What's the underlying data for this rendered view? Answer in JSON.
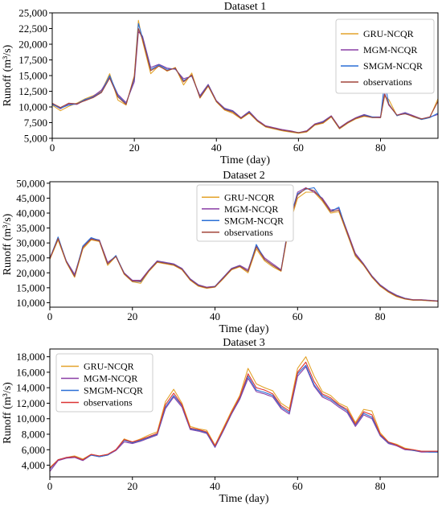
{
  "chart_data": [
    {
      "type": "line",
      "title": "Dataset 1",
      "xlabel": "Time (day)",
      "ylabel": "Runoff (m³/s)",
      "xlim": [
        0,
        94
      ],
      "ylim": [
        5000,
        25000
      ],
      "xticks": [
        0,
        20,
        40,
        60,
        80
      ],
      "xtick_labels": [
        "0",
        "20",
        "40",
        "60",
        "80"
      ],
      "yticks": [
        5000,
        7500,
        10000,
        12500,
        15000,
        17500,
        20000,
        22500,
        25000
      ],
      "ytick_labels": [
        "5,000",
        "7,500",
        "10,000",
        "12,500",
        "15,000",
        "17,500",
        "20,000",
        "22,500",
        "25,000"
      ],
      "legend_position": "top-right",
      "x_keyframes": [
        0,
        2,
        4,
        6,
        8,
        10,
        12,
        14,
        16,
        18,
        20,
        21,
        22,
        24,
        26,
        28,
        30,
        32,
        34,
        36,
        38,
        40,
        42,
        44,
        46,
        48,
        50,
        52,
        54,
        56,
        58,
        60,
        62,
        64,
        66,
        68,
        70,
        72,
        74,
        76,
        78,
        80,
        81,
        82,
        84,
        86,
        88,
        90,
        92,
        94
      ],
      "series": [
        {
          "name": "GRU-NCQR",
          "color": "#e3a32a",
          "values": [
            10300,
            9400,
            10100,
            10600,
            11300,
            11800,
            12500,
            15300,
            11100,
            10300,
            15000,
            23800,
            20500,
            15300,
            16600,
            15700,
            16300,
            13500,
            15400,
            11400,
            13300,
            10800,
            9500,
            9000,
            8100,
            9000,
            7700,
            6800,
            6500,
            6200,
            6000,
            5800,
            6000,
            7100,
            7400,
            8400,
            6500,
            7400,
            8100,
            8500,
            8300,
            8300,
            11700,
            11200,
            8600,
            9000,
            8400,
            8000,
            8300,
            11300
          ]
        },
        {
          "name": "MGM-NCQR",
          "color": "#8a3fa6",
          "values": [
            10500,
            9700,
            10500,
            10400,
            11100,
            11700,
            12700,
            14800,
            12000,
            10700,
            14000,
            22000,
            21300,
            16300,
            16800,
            16200,
            16000,
            14500,
            14900,
            11800,
            13600,
            11000,
            9800,
            9400,
            8300,
            9300,
            7900,
            7000,
            6700,
            6400,
            6200,
            5900,
            6200,
            7300,
            7700,
            8600,
            6700,
            7600,
            8300,
            8800,
            8400,
            8400,
            12200,
            10300,
            8700,
            9100,
            8600,
            8100,
            8400,
            8800
          ]
        },
        {
          "name": "SMGM-NCQR",
          "color": "#2a6fd6",
          "values": [
            10400,
            9800,
            10300,
            10500,
            11200,
            11600,
            12400,
            15000,
            11800,
            10500,
            14500,
            23300,
            21000,
            16000,
            16700,
            16000,
            16100,
            14200,
            15000,
            11600,
            13500,
            10900,
            9700,
            9300,
            8200,
            9200,
            7800,
            6900,
            6600,
            6300,
            6100,
            5900,
            6100,
            7200,
            7600,
            8500,
            6600,
            7500,
            8200,
            8700,
            8400,
            8300,
            14000,
            10500,
            8600,
            9000,
            8500,
            8000,
            8300,
            9000
          ]
        },
        {
          "name": "observations",
          "color": "#a2453a",
          "values": [
            10600,
            9900,
            10600,
            10500,
            11000,
            11500,
            12300,
            14600,
            11600,
            10400,
            14800,
            22500,
            20800,
            15800,
            16500,
            15800,
            16200,
            14000,
            15100,
            11500,
            13400,
            10900,
            9600,
            9200,
            8200,
            9100,
            7800,
            6900,
            6600,
            6300,
            6100,
            5900,
            6100,
            7200,
            7500,
            8500,
            6600,
            7500,
            8200,
            8600,
            8300,
            8300,
            12000,
            10400,
            8700,
            8900,
            8500,
            8100,
            8400,
            10900
          ]
        }
      ]
    },
    {
      "type": "line",
      "title": "Dataset 2",
      "xlabel": "Time (day)",
      "ylabel": "Runoff (m³/s)",
      "xlim": [
        0,
        94
      ],
      "ylim": [
        8500,
        50500
      ],
      "xticks": [
        0,
        20,
        40,
        60,
        80
      ],
      "xtick_labels": [
        "0",
        "20",
        "40",
        "60",
        "80"
      ],
      "yticks": [
        10000,
        15000,
        20000,
        25000,
        30000,
        35000,
        40000,
        45000,
        50000
      ],
      "ytick_labels": [
        "10,000",
        "15,000",
        "20,000",
        "25,000",
        "30,000",
        "35,000",
        "40,000",
        "45,000",
        "50,000"
      ],
      "legend_position": "top-center",
      "x_keyframes": [
        0,
        2,
        4,
        6,
        8,
        10,
        12,
        14,
        16,
        18,
        20,
        22,
        24,
        26,
        28,
        30,
        32,
        34,
        36,
        38,
        40,
        42,
        44,
        46,
        48,
        50,
        52,
        54,
        56,
        58,
        60,
        62,
        64,
        66,
        68,
        70,
        72,
        74,
        76,
        78,
        80,
        82,
        84,
        86,
        88,
        90,
        92,
        94
      ],
      "series": [
        {
          "name": "GRU-NCQR",
          "color": "#e3a32a",
          "values": [
            24500,
            31000,
            23500,
            18500,
            28000,
            31000,
            30500,
            22500,
            25500,
            19500,
            17000,
            16500,
            20500,
            23500,
            23000,
            22500,
            21000,
            17500,
            15500,
            14800,
            15200,
            18000,
            21000,
            22000,
            20000,
            28000,
            24000,
            22000,
            20500,
            36000,
            45000,
            47000,
            47000,
            44000,
            40000,
            40500,
            33000,
            25500,
            22500,
            18500,
            15500,
            13500,
            12000,
            11200,
            10800,
            10800,
            10600,
            10500
          ]
        },
        {
          "name": "MGM-NCQR",
          "color": "#8a3fa6",
          "values": [
            25000,
            31500,
            24000,
            19500,
            28500,
            31500,
            31000,
            23500,
            25500,
            20000,
            17500,
            17500,
            21000,
            24000,
            23500,
            23000,
            21500,
            18000,
            16000,
            15200,
            15500,
            18500,
            21500,
            22500,
            21000,
            29000,
            25000,
            23000,
            21000,
            37000,
            47000,
            48500,
            47000,
            45000,
            41000,
            41500,
            34000,
            26500,
            23000,
            19000,
            16000,
            14000,
            12500,
            11500,
            11000,
            11000,
            10800,
            10600
          ]
        },
        {
          "name": "SMGM-NCQR",
          "color": "#2a6fd6",
          "values": [
            24800,
            32000,
            23800,
            19000,
            29000,
            31800,
            30800,
            23000,
            25800,
            19800,
            17200,
            17000,
            20800,
            23800,
            23300,
            22800,
            21300,
            17800,
            15800,
            15000,
            15400,
            18300,
            21300,
            22300,
            20500,
            29500,
            24500,
            22500,
            20800,
            37500,
            46500,
            48000,
            48500,
            44500,
            40500,
            42000,
            33500,
            26000,
            22800,
            18800,
            15800,
            13800,
            12300,
            11400,
            10900,
            10900,
            10700,
            10500
          ]
        },
        {
          "name": "observations",
          "color": "#a2453a",
          "values": [
            24700,
            31500,
            23700,
            18800,
            28500,
            31300,
            30700,
            23000,
            25500,
            19700,
            17200,
            17200,
            20700,
            23700,
            23200,
            22700,
            21200,
            17700,
            15700,
            15000,
            15300,
            18200,
            21200,
            22200,
            20500,
            28700,
            24500,
            22500,
            20700,
            36700,
            46000,
            48300,
            47500,
            44500,
            40500,
            41000,
            33500,
            26000,
            22700,
            18700,
            15700,
            13700,
            12200,
            11300,
            10900,
            10900,
            10700,
            10500
          ]
        }
      ]
    },
    {
      "type": "line",
      "title": "Dataset 3",
      "xlabel": "Time (day)",
      "ylabel": "Runoff (m³/s)",
      "xlim": [
        0,
        94
      ],
      "ylim": [
        2500,
        19000
      ],
      "xticks": [
        0,
        20,
        40,
        60,
        80
      ],
      "xtick_labels": [
        "0",
        "20",
        "40",
        "60",
        "80"
      ],
      "yticks": [
        4000,
        6000,
        8000,
        10000,
        12000,
        14000,
        16000,
        18000
      ],
      "ytick_labels": [
        "4,000",
        "6,000",
        "8,000",
        "10,000",
        "12,000",
        "14,000",
        "16,000",
        "18,000"
      ],
      "legend_position": "top-left",
      "x_keyframes": [
        0,
        2,
        4,
        6,
        8,
        10,
        12,
        14,
        16,
        18,
        20,
        22,
        24,
        26,
        28,
        30,
        32,
        34,
        36,
        38,
        40,
        42,
        44,
        46,
        48,
        50,
        52,
        54,
        56,
        58,
        60,
        62,
        64,
        66,
        68,
        70,
        72,
        74,
        76,
        78,
        80,
        82,
        84,
        86,
        88,
        90,
        92,
        94
      ],
      "series": [
        {
          "name": "GRU-NCQR",
          "color": "#e3a32a",
          "values": [
            3700,
            4700,
            5000,
            5200,
            4800,
            5400,
            5200,
            5400,
            6000,
            7400,
            7000,
            7400,
            7900,
            8300,
            12200,
            13800,
            12000,
            9000,
            8700,
            8500,
            6600,
            8800,
            11000,
            13000,
            16500,
            14500,
            14000,
            13600,
            12000,
            11300,
            16500,
            18000,
            15500,
            13500,
            13000,
            12000,
            11500,
            9500,
            11200,
            11000,
            8200,
            7000,
            6700,
            6200,
            6000,
            5800,
            5800,
            5800
          ]
        },
        {
          "name": "MGM-NCQR",
          "color": "#8a3fa6",
          "values": [
            3200,
            4600,
            4900,
            5000,
            4600,
            5300,
            5100,
            5300,
            5900,
            7000,
            6800,
            7100,
            7500,
            7900,
            11300,
            12800,
            11500,
            8600,
            8400,
            8100,
            6300,
            8400,
            10600,
            12500,
            15200,
            13500,
            13200,
            12800,
            11300,
            10600,
            15500,
            16700,
            14200,
            12800,
            12300,
            11500,
            10800,
            9000,
            10500,
            10000,
            7800,
            6800,
            6500,
            6000,
            5900,
            5700,
            5700,
            5700
          ]
        },
        {
          "name": "SMGM-NCQR",
          "color": "#2a6fd6",
          "values": [
            3500,
            4700,
            5000,
            5100,
            4700,
            5300,
            5100,
            5300,
            6000,
            7200,
            6900,
            7200,
            7600,
            8000,
            11500,
            13000,
            11700,
            8700,
            8500,
            8200,
            6400,
            8500,
            10700,
            12700,
            15500,
            13700,
            13400,
            13000,
            11500,
            10800,
            15800,
            16900,
            14400,
            13000,
            12500,
            11700,
            11000,
            9200,
            10700,
            10200,
            7900,
            6900,
            6600,
            6100,
            5900,
            5800,
            5700,
            5700
          ]
        },
        {
          "name": "observations",
          "color": "#dc3535",
          "values": [
            3600,
            4700,
            5000,
            5100,
            4700,
            5400,
            5200,
            5400,
            6000,
            7300,
            7000,
            7300,
            7700,
            8100,
            11800,
            13300,
            11800,
            8800,
            8600,
            8300,
            6500,
            8600,
            10800,
            12800,
            15800,
            14000,
            13700,
            13200,
            11700,
            11000,
            16000,
            17300,
            14800,
            13200,
            12700,
            11800,
            11200,
            9300,
            10900,
            10500,
            8000,
            7000,
            6600,
            6100,
            6000,
            5800,
            5800,
            5800
          ]
        }
      ]
    }
  ]
}
